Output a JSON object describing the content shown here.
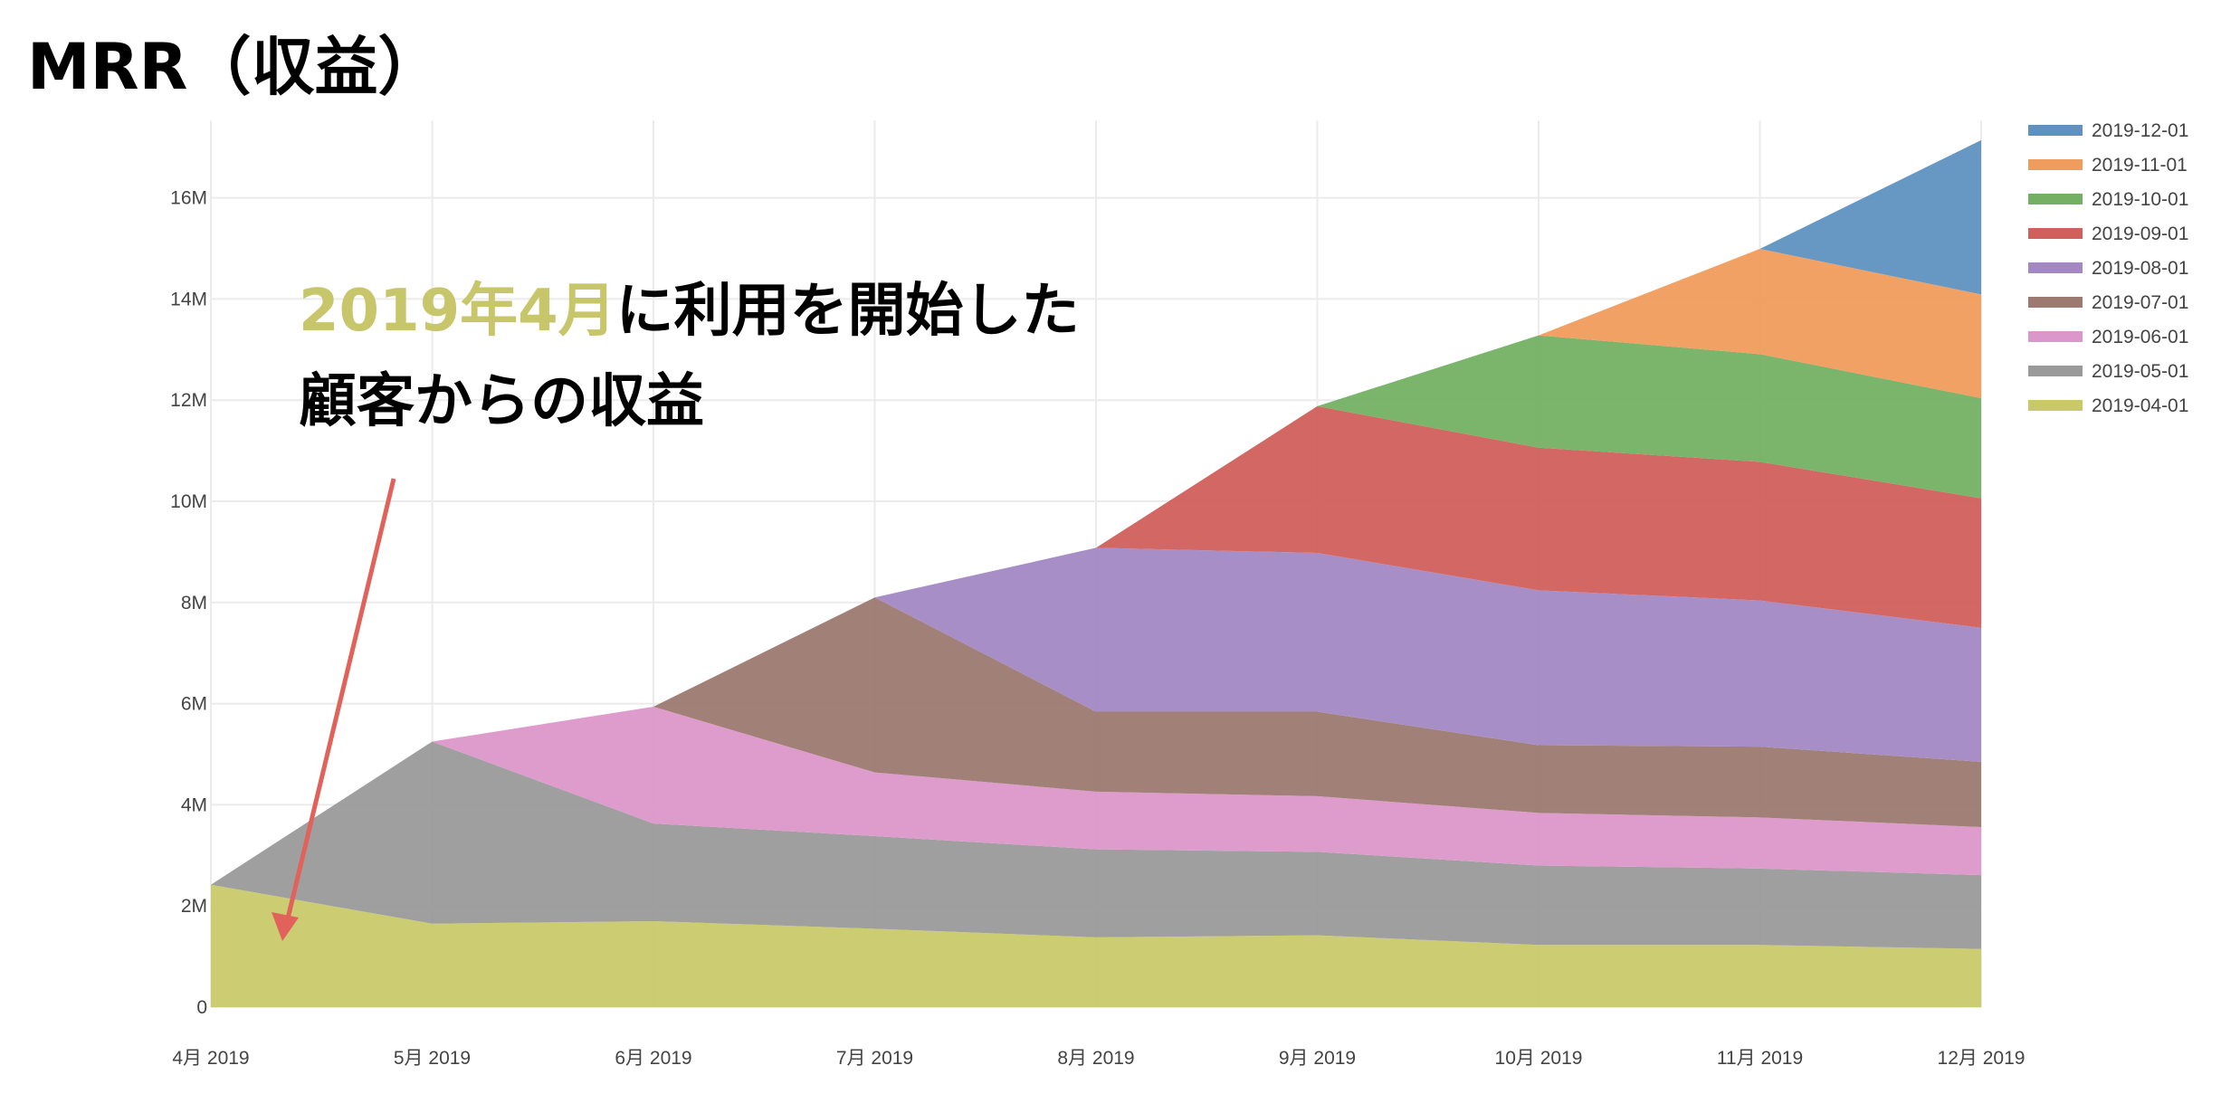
{
  "title": "MRR（収益）",
  "annotation": {
    "highlight": "2019年4月",
    "line1_rest": "に利用を開始した",
    "line2": "顧客からの収益",
    "arrow_color": "#e0625a"
  },
  "chart_data": {
    "type": "area",
    "stacked": true,
    "title": "MRR（収益）",
    "xlabel": "",
    "ylabel": "",
    "categories": [
      "4月 2019",
      "5月 2019",
      "6月 2019",
      "7月 2019",
      "8月 2019",
      "9月 2019",
      "10月 2019",
      "11月 2019",
      "12月 2019"
    ],
    "y_ticks": [
      0,
      2,
      4,
      6,
      8,
      10,
      12,
      14,
      16
    ],
    "y_tick_labels": [
      "0",
      "2M",
      "4M",
      "6M",
      "8M",
      "10M",
      "12M",
      "14M",
      "16M"
    ],
    "ylim": [
      0,
      17.5
    ],
    "unit": "M",
    "grid": true,
    "legend_position": "right",
    "series": [
      {
        "name": "2019-04-01",
        "color": "#c9c96a",
        "values": [
          2.42,
          1.65,
          1.7,
          1.55,
          1.38,
          1.42,
          1.23,
          1.23,
          1.15
        ]
      },
      {
        "name": "2019-05-01",
        "color": "#9a9a9a",
        "values": [
          null,
          3.6,
          1.93,
          1.83,
          1.74,
          1.65,
          1.57,
          1.51,
          1.46
        ]
      },
      {
        "name": "2019-06-01",
        "color": "#dc97ca",
        "values": [
          null,
          null,
          2.31,
          1.26,
          1.14,
          1.1,
          1.04,
          1.01,
          0.95
        ]
      },
      {
        "name": "2019-07-01",
        "color": "#9c7a70",
        "values": [
          null,
          null,
          null,
          3.46,
          1.58,
          1.67,
          1.34,
          1.4,
          1.29
        ]
      },
      {
        "name": "2019-08-01",
        "color": "#a388c3",
        "values": [
          null,
          null,
          null,
          null,
          3.24,
          3.14,
          3.06,
          2.89,
          2.65
        ]
      },
      {
        "name": "2019-09-01",
        "color": "#d15f5c",
        "values": [
          null,
          null,
          null,
          null,
          null,
          2.9,
          2.82,
          2.74,
          2.56
        ]
      },
      {
        "name": "2019-10-01",
        "color": "#74b063",
        "values": [
          null,
          null,
          null,
          null,
          null,
          null,
          2.22,
          2.13,
          1.98
        ]
      },
      {
        "name": "2019-11-01",
        "color": "#f09c5c",
        "values": [
          null,
          null,
          null,
          null,
          null,
          null,
          null,
          2.08,
          2.05
        ]
      },
      {
        "name": "2019-12-01",
        "color": "#5f92c0",
        "values": [
          null,
          null,
          null,
          null,
          null,
          null,
          null,
          null,
          3.05
        ]
      }
    ]
  }
}
